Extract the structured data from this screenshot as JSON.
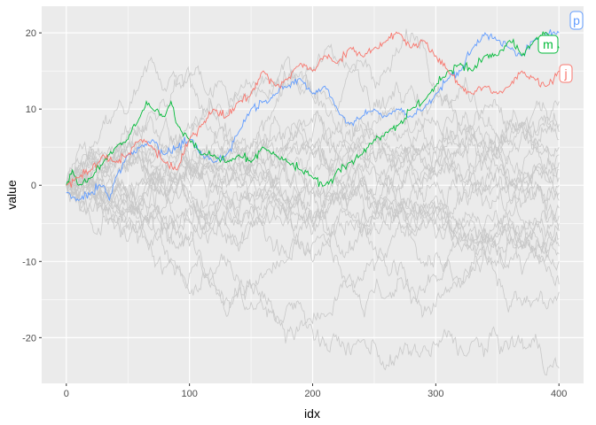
{
  "chart_data": {
    "type": "line",
    "xlabel": "idx",
    "ylabel": "value",
    "xlim": [
      -20,
      420
    ],
    "ylim": [
      -26,
      23.5
    ],
    "x_ticks": [
      0,
      100,
      200,
      300,
      400
    ],
    "x_tick_labels": [
      "0",
      "100",
      "200",
      "300",
      "400"
    ],
    "y_ticks": [
      -20,
      -10,
      0,
      10,
      20
    ],
    "y_tick_labels": [
      "-20",
      "-10",
      "0",
      "10",
      "20"
    ],
    "grid": true,
    "legend": "none",
    "panel_background": "#ebebeb",
    "background_series_color": "#c8c8c8",
    "background_series_count": 23,
    "background_series_end_values": [
      11,
      8,
      7,
      6,
      5,
      4,
      3,
      2,
      1,
      0,
      -1,
      -2,
      -3,
      -4,
      -5,
      -6,
      -7,
      -8,
      -9,
      -10,
      -13,
      -14,
      -24
    ],
    "highlighted_series": [
      {
        "name": "p",
        "color": "#619cff",
        "end_value": 20,
        "points": [
          [
            0,
            -1
          ],
          [
            10,
            -2
          ],
          [
            20,
            -1
          ],
          [
            30,
            0
          ],
          [
            35,
            -2
          ],
          [
            40,
            1
          ],
          [
            50,
            4
          ],
          [
            60,
            5
          ],
          [
            70,
            6
          ],
          [
            80,
            4
          ],
          [
            90,
            5
          ],
          [
            100,
            6
          ],
          [
            110,
            4
          ],
          [
            120,
            3
          ],
          [
            130,
            4
          ],
          [
            140,
            7
          ],
          [
            150,
            10
          ],
          [
            160,
            11
          ],
          [
            170,
            12
          ],
          [
            180,
            13
          ],
          [
            190,
            14
          ],
          [
            200,
            12
          ],
          [
            210,
            13
          ],
          [
            220,
            10
          ],
          [
            230,
            8
          ],
          [
            240,
            9
          ],
          [
            250,
            10
          ],
          [
            260,
            9
          ],
          [
            270,
            10
          ],
          [
            280,
            9
          ],
          [
            290,
            10
          ],
          [
            300,
            12
          ],
          [
            310,
            14
          ],
          [
            320,
            15
          ],
          [
            330,
            18
          ],
          [
            340,
            20
          ],
          [
            350,
            19
          ],
          [
            360,
            18
          ],
          [
            370,
            17
          ],
          [
            380,
            19
          ],
          [
            390,
            20
          ],
          [
            400,
            20
          ]
        ]
      },
      {
        "name": "m",
        "color": "#00ba38",
        "end_value": 18,
        "points": [
          [
            0,
            0
          ],
          [
            5,
            2
          ],
          [
            10,
            0
          ],
          [
            20,
            1
          ],
          [
            30,
            3
          ],
          [
            40,
            5
          ],
          [
            50,
            6
          ],
          [
            55,
            8
          ],
          [
            60,
            9
          ],
          [
            65,
            11
          ],
          [
            70,
            10
          ],
          [
            80,
            9
          ],
          [
            85,
            11
          ],
          [
            90,
            8
          ],
          [
            100,
            6
          ],
          [
            110,
            4
          ],
          [
            120,
            4
          ],
          [
            130,
            3
          ],
          [
            140,
            4
          ],
          [
            150,
            3
          ],
          [
            160,
            5
          ],
          [
            170,
            4
          ],
          [
            180,
            3
          ],
          [
            190,
            2
          ],
          [
            200,
            1
          ],
          [
            210,
            0
          ],
          [
            220,
            2
          ],
          [
            230,
            3
          ],
          [
            240,
            4
          ],
          [
            250,
            6
          ],
          [
            260,
            7
          ],
          [
            270,
            8
          ],
          [
            280,
            10
          ],
          [
            290,
            11
          ],
          [
            300,
            13
          ],
          [
            310,
            15
          ],
          [
            320,
            16
          ],
          [
            330,
            15
          ],
          [
            340,
            17
          ],
          [
            350,
            17
          ],
          [
            360,
            19
          ],
          [
            370,
            17
          ],
          [
            380,
            19
          ],
          [
            390,
            20
          ],
          [
            400,
            18
          ]
        ]
      },
      {
        "name": "j",
        "color": "#f8766d",
        "end_value": 15,
        "points": [
          [
            0,
            0
          ],
          [
            10,
            1
          ],
          [
            20,
            2
          ],
          [
            30,
            4
          ],
          [
            40,
            3
          ],
          [
            50,
            4
          ],
          [
            60,
            6
          ],
          [
            70,
            5
          ],
          [
            80,
            3
          ],
          [
            90,
            2
          ],
          [
            100,
            6
          ],
          [
            110,
            8
          ],
          [
            120,
            10
          ],
          [
            130,
            9
          ],
          [
            140,
            11
          ],
          [
            150,
            12
          ],
          [
            160,
            15
          ],
          [
            170,
            13
          ],
          [
            180,
            14
          ],
          [
            190,
            16
          ],
          [
            200,
            15
          ],
          [
            210,
            17
          ],
          [
            220,
            16
          ],
          [
            230,
            18
          ],
          [
            240,
            17
          ],
          [
            250,
            18
          ],
          [
            260,
            19
          ],
          [
            270,
            20
          ],
          [
            280,
            18
          ],
          [
            290,
            19
          ],
          [
            300,
            17
          ],
          [
            310,
            15
          ],
          [
            320,
            13
          ],
          [
            330,
            12
          ],
          [
            340,
            13
          ],
          [
            350,
            12
          ],
          [
            360,
            13
          ],
          [
            370,
            15
          ],
          [
            380,
            14
          ],
          [
            390,
            13
          ],
          [
            400,
            15
          ]
        ]
      }
    ]
  },
  "end_tags": [
    {
      "label": "p",
      "color": "#619cff",
      "series": "p"
    },
    {
      "label": "m",
      "color": "#00ba38",
      "series": "m"
    },
    {
      "label": "j",
      "color": "#f8766d",
      "series": "j"
    }
  ]
}
